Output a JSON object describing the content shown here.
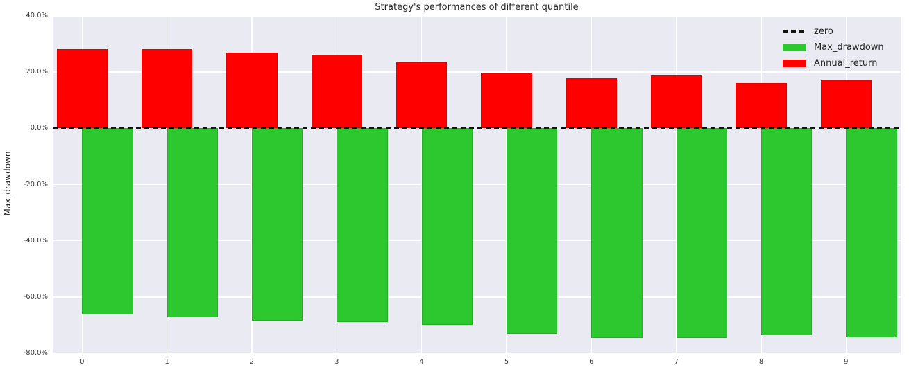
{
  "title": "Strategy's performances of different quantile",
  "chart_data": {
    "type": "bar",
    "title": "Strategy's performances of different quantile",
    "xlabel": "",
    "ylabel": "Max_drawdown",
    "categories": [
      "0",
      "1",
      "2",
      "3",
      "4",
      "5",
      "6",
      "7",
      "8",
      "9"
    ],
    "series": [
      {
        "name": "Annual_return",
        "color": "#fe0000",
        "values": [
          28.1,
          28.2,
          26.9,
          26.3,
          23.6,
          19.9,
          17.8,
          18.9,
          16.2,
          17.1
        ]
      },
      {
        "name": "Max_drawdown",
        "color": "#2dc72f",
        "values": [
          -66.3,
          -67.3,
          -68.5,
          -68.8,
          -69.9,
          -73.0,
          -74.5,
          -74.7,
          -73.7,
          -74.4
        ]
      }
    ],
    "zero_line": {
      "label": "zero",
      "value": 0,
      "style": "dashed",
      "color": "#111111"
    },
    "ylim": [
      -80,
      40
    ],
    "yticks": [
      {
        "label": "40.0%",
        "value": 40
      },
      {
        "label": "20.0%",
        "value": 20
      },
      {
        "label": "0.0%",
        "value": 0
      },
      {
        "label": "-20.0%",
        "value": -20
      },
      {
        "label": "-40.0%",
        "value": -40
      },
      {
        "label": "-60.0%",
        "value": -60
      },
      {
        "label": "-80.0%",
        "value": -80
      }
    ],
    "grid": true,
    "plot_background": "#eaeaf2",
    "gridline_color": "#ffffff",
    "legend_position": "upper right",
    "legend_items": [
      {
        "label": "zero",
        "marker": "dashed-line",
        "color": "#111111"
      },
      {
        "label": "Max_drawdown",
        "marker": "patch",
        "color": "#2dc72f"
      },
      {
        "label": "Annual_return",
        "marker": "patch",
        "color": "#fe0000"
      }
    ]
  }
}
